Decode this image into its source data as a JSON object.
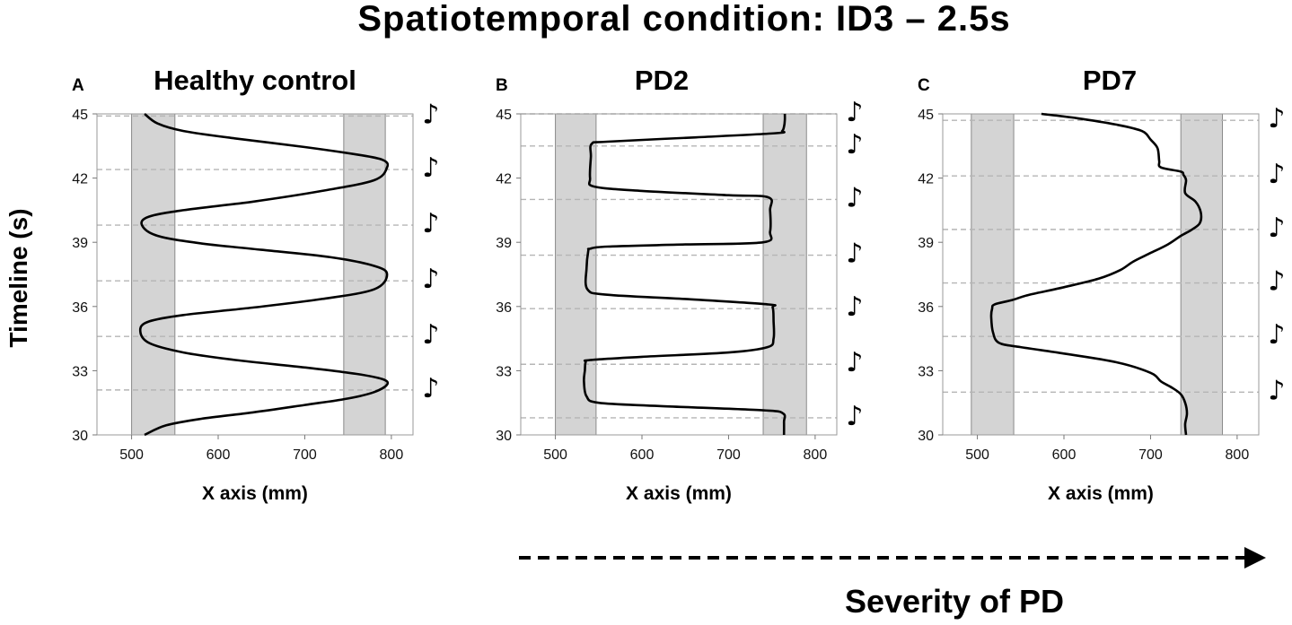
{
  "figure": {
    "title": "Spatiotemporal condition: ID3 – 2.5s",
    "ylabel": "Timeline (s)",
    "severity_label": "Severity of PD",
    "note_glyph": "♪"
  },
  "chart_data": [
    {
      "type": "line",
      "letter": "A",
      "title": "Healthy control",
      "xlabel": "X axis (mm)",
      "xlim": [
        460,
        825
      ],
      "ylim": [
        30,
        45
      ],
      "xticks": [
        500,
        600,
        700,
        800
      ],
      "yticks": [
        30,
        33,
        36,
        39,
        42,
        45
      ],
      "target_zones": [
        [
          500,
          550
        ],
        [
          745,
          793
        ]
      ],
      "beat_times": [
        32.1,
        34.6,
        37.2,
        39.8,
        42.4,
        44.9
      ],
      "x": [
        515,
        540,
        580,
        640,
        700,
        750,
        780,
        795,
        790,
        760,
        700,
        620,
        560,
        520,
        510,
        520,
        560,
        640,
        720,
        780,
        795,
        780,
        730,
        650,
        580,
        530,
        512,
        520,
        560,
        640,
        720,
        780,
        795,
        790,
        760,
        700,
        620,
        560,
        530,
        515
      ],
      "y": [
        30.0,
        30.45,
        30.75,
        31.05,
        31.4,
        31.7,
        32.0,
        32.35,
        32.6,
        32.85,
        33.15,
        33.5,
        33.85,
        34.3,
        34.9,
        35.3,
        35.6,
        35.95,
        36.35,
        36.8,
        37.5,
        37.9,
        38.3,
        38.65,
        38.95,
        39.3,
        39.8,
        40.2,
        40.5,
        40.9,
        41.4,
        41.9,
        42.5,
        42.85,
        43.1,
        43.45,
        43.85,
        44.2,
        44.55,
        45.0
      ]
    },
    {
      "type": "line",
      "letter": "B",
      "title": "PD2",
      "xlabel": "X axis (mm)",
      "xlim": [
        460,
        825
      ],
      "ylim": [
        30,
        45
      ],
      "xticks": [
        500,
        600,
        700,
        800
      ],
      "yticks": [
        30,
        33,
        36,
        39,
        42,
        45
      ],
      "target_zones": [
        [
          500,
          547
        ],
        [
          740,
          790
        ]
      ],
      "beat_times": [
        30.8,
        33.3,
        35.9,
        38.4,
        41.0,
        43.5,
        45.0
      ],
      "x": [
        764,
        764,
        763,
        740,
        620,
        550,
        536,
        533,
        534,
        535,
        540,
        600,
        700,
        745,
        752,
        752,
        751,
        745,
        650,
        560,
        537,
        536,
        538,
        540,
        560,
        650,
        740,
        748,
        748,
        746,
        700,
        600,
        545,
        540,
        541,
        542,
        560,
        660,
        755,
        762,
        764,
        765,
        765
      ],
      "y": [
        30.0,
        30.6,
        31.0,
        31.15,
        31.35,
        31.5,
        31.8,
        32.5,
        33.0,
        33.4,
        33.5,
        33.65,
        33.85,
        34.1,
        34.5,
        35.3,
        35.95,
        36.1,
        36.35,
        36.55,
        36.8,
        37.8,
        38.6,
        38.7,
        38.8,
        38.9,
        39.0,
        39.5,
        40.5,
        41.1,
        41.2,
        41.4,
        41.6,
        42.0,
        43.0,
        43.6,
        43.7,
        43.9,
        44.1,
        44.2,
        44.4,
        44.7,
        45.0
      ]
    },
    {
      "type": "line",
      "letter": "C",
      "title": "PD7",
      "xlabel": "X axis (mm)",
      "xlim": [
        460,
        825
      ],
      "ylim": [
        30,
        45
      ],
      "xticks": [
        500,
        600,
        700,
        800
      ],
      "yticks": [
        30,
        33,
        36,
        39,
        42,
        45
      ],
      "target_zones": [
        [
          493,
          542
        ],
        [
          735,
          783
        ]
      ],
      "beat_times": [
        32.0,
        34.6,
        37.1,
        39.6,
        42.1,
        44.7
      ],
      "x": [
        741,
        740,
        742,
        740,
        735,
        725,
        712,
        700,
        660,
        600,
        550,
        525,
        518,
        516,
        517,
        520,
        540,
        560,
        600,
        640,
        665,
        680,
        700,
        720,
        735,
        748,
        757,
        758,
        752,
        740,
        741,
        738,
        735,
        712,
        710,
        708,
        700,
        690,
        660,
        615,
        574
      ],
      "y": [
        30.0,
        30.5,
        31.0,
        31.5,
        31.9,
        32.2,
        32.5,
        32.9,
        33.4,
        33.8,
        34.1,
        34.3,
        34.8,
        35.5,
        35.9,
        36.1,
        36.3,
        36.55,
        36.9,
        37.3,
        37.7,
        38.1,
        38.5,
        38.9,
        39.3,
        39.6,
        39.9,
        40.4,
        40.9,
        41.3,
        41.9,
        42.15,
        42.3,
        42.5,
        42.8,
        43.4,
        43.8,
        44.2,
        44.5,
        44.8,
        45.0
      ]
    }
  ]
}
